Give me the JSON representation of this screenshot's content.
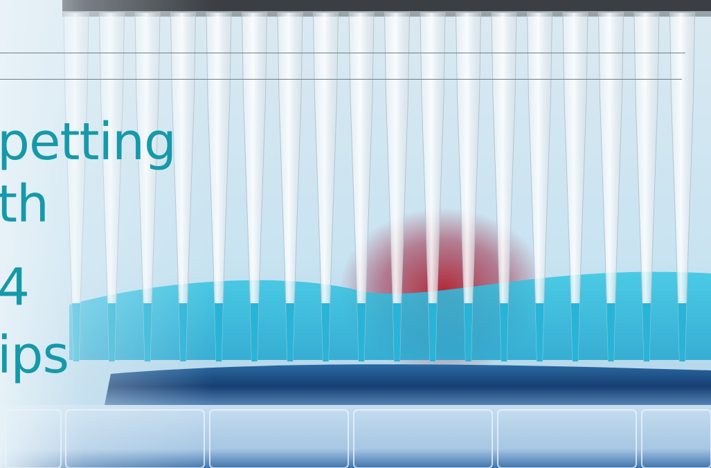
{
  "headline": {
    "lines": [
      "petting",
      "th",
      "4",
      "ips"
    ]
  },
  "colors": {
    "headline": "#1699a9",
    "background": "#cfe6f3",
    "liquid_blue": "#2bb9d8",
    "liquid_red": "#b2202e",
    "reservoir": "#1d5f9c"
  },
  "scene": {
    "subject": "row of pipette tips over a reagent reservoir",
    "icons": [
      "pipette-tip-icon"
    ]
  }
}
